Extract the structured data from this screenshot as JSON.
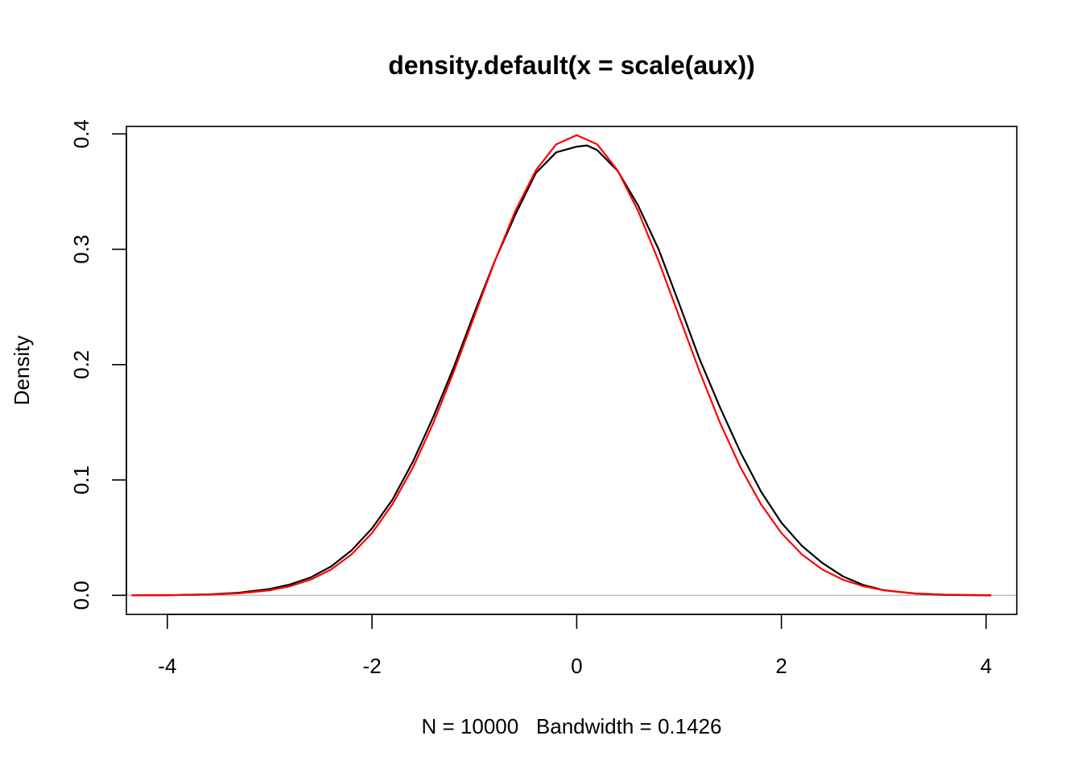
{
  "chart_data": {
    "type": "line",
    "title": "density.default(x = scale(aux))",
    "xlabel": "N = 10000   Bandwidth = 0.1426",
    "ylabel": "Density",
    "xlim": [
      -4.4,
      4.3
    ],
    "ylim": [
      -0.0165,
      0.4065
    ],
    "x_ticks": [
      -4,
      -2,
      0,
      2,
      4
    ],
    "x_tick_labels": [
      "-4",
      "-2",
      "0",
      "2",
      "4"
    ],
    "y_ticks": [
      0.0,
      0.1,
      0.2,
      0.3,
      0.4
    ],
    "y_tick_labels": [
      "0.0",
      "0.1",
      "0.2",
      "0.3",
      "0.4"
    ],
    "grid": false,
    "zero_line": {
      "y": 0,
      "color": "#bebebe"
    },
    "series": [
      {
        "color": "#000000",
        "x": [
          -4.35,
          -4.0,
          -3.6,
          -3.3,
          -3.0,
          -2.8,
          -2.6,
          -2.4,
          -2.2,
          -2.0,
          -1.8,
          -1.6,
          -1.4,
          -1.2,
          -1.0,
          -0.8,
          -0.6,
          -0.4,
          -0.2,
          0.0,
          0.1,
          0.2,
          0.4,
          0.6,
          0.8,
          1.0,
          1.2,
          1.4,
          1.6,
          1.8,
          2.0,
          2.2,
          2.4,
          2.6,
          2.8,
          3.0,
          3.3,
          3.6,
          4.05
        ],
        "values": [
          0.0,
          0.0001,
          0.0008,
          0.0023,
          0.0055,
          0.0095,
          0.0155,
          0.025,
          0.039,
          0.058,
          0.083,
          0.116,
          0.155,
          0.198,
          0.245,
          0.29,
          0.33,
          0.366,
          0.384,
          0.389,
          0.39,
          0.386,
          0.368,
          0.338,
          0.3,
          0.253,
          0.205,
          0.163,
          0.124,
          0.09,
          0.063,
          0.043,
          0.028,
          0.0165,
          0.009,
          0.0045,
          0.0015,
          0.0004,
          0.0
        ]
      },
      {
        "color": "#ff0000",
        "x": [
          -4.35,
          -4.0,
          -3.6,
          -3.3,
          -3.0,
          -2.8,
          -2.6,
          -2.4,
          -2.2,
          -2.0,
          -1.8,
          -1.6,
          -1.4,
          -1.2,
          -1.0,
          -0.8,
          -0.6,
          -0.4,
          -0.2,
          0.0,
          0.2,
          0.4,
          0.6,
          0.8,
          1.0,
          1.2,
          1.4,
          1.6,
          1.8,
          2.0,
          2.2,
          2.4,
          2.6,
          2.8,
          3.0,
          3.3,
          3.6,
          4.05
        ],
        "values": [
          0.0,
          0.0001,
          0.0006,
          0.0017,
          0.0044,
          0.0079,
          0.0136,
          0.0224,
          0.0355,
          0.054,
          0.079,
          0.1109,
          0.1497,
          0.1942,
          0.242,
          0.2897,
          0.3332,
          0.3683,
          0.391,
          0.3989,
          0.391,
          0.3683,
          0.3332,
          0.2897,
          0.242,
          0.1942,
          0.1497,
          0.1109,
          0.079,
          0.054,
          0.0355,
          0.0224,
          0.0136,
          0.0079,
          0.0044,
          0.0017,
          0.0006,
          0.0001
        ]
      }
    ]
  }
}
